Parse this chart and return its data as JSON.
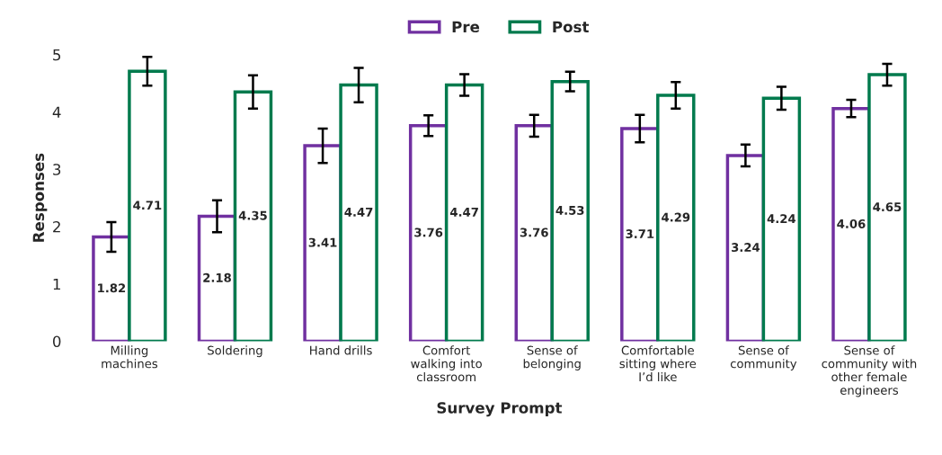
{
  "chart_data": {
    "type": "bar",
    "xlabel": "Survey Prompt",
    "ylabel": "Responses",
    "categories": [
      "Milling\nmachines",
      "Soldering",
      "Hand drills",
      "Comfort\nwalking into\nclassroom",
      "Sense of\nbelonging",
      "Comfortable\nsitting where\nI’d like",
      "Sense of\ncommunity",
      "Sense of\ncommunity with\nother female\nengineers"
    ],
    "series": [
      {
        "name": "Pre",
        "color": "#7030a0",
        "values": [
          1.82,
          2.18,
          3.41,
          3.76,
          3.76,
          3.71,
          3.24,
          4.06
        ],
        "errors": [
          0.26,
          0.28,
          0.3,
          0.18,
          0.19,
          0.24,
          0.19,
          0.15
        ]
      },
      {
        "name": "Post",
        "color": "#007a4d",
        "values": [
          4.71,
          4.35,
          4.47,
          4.47,
          4.53,
          4.29,
          4.24,
          4.65
        ],
        "errors": [
          0.25,
          0.29,
          0.3,
          0.19,
          0.17,
          0.23,
          0.2,
          0.19
        ]
      }
    ],
    "ylim": [
      0,
      5
    ],
    "yticks": [
      0,
      1,
      2,
      3,
      4,
      5
    ],
    "grid": false,
    "legend": "top",
    "data_labels": true
  }
}
